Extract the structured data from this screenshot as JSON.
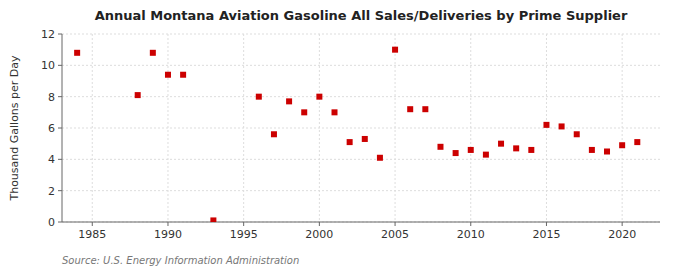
{
  "chart_data": {
    "type": "scatter",
    "title": "Annual Montana Aviation Gasoline All Sales/Deliveries by Prime Supplier",
    "ylabel": "Thousand Gallons per Day",
    "source": "Source: U.S. Energy Information Administration",
    "x": [
      1984,
      1988,
      1989,
      1990,
      1991,
      1993,
      1996,
      1997,
      1998,
      1999,
      2000,
      2001,
      2002,
      2003,
      2004,
      2005,
      2006,
      2007,
      2008,
      2009,
      2010,
      2011,
      2012,
      2013,
      2014,
      2015,
      2016,
      2017,
      2018,
      2019,
      2020,
      2021
    ],
    "values": [
      10.8,
      8.1,
      10.8,
      9.4,
      9.4,
      0.1,
      8.0,
      5.6,
      7.7,
      7.0,
      8.0,
      7.0,
      5.1,
      5.3,
      4.1,
      11.0,
      7.2,
      7.2,
      4.8,
      4.4,
      4.6,
      4.3,
      5.0,
      4.7,
      4.6,
      6.2,
      6.1,
      5.6,
      4.6,
      4.5,
      4.9,
      5.1
    ],
    "color": "#cc0000",
    "marker": "square",
    "xlim": [
      1983,
      2022.5
    ],
    "ylim": [
      0,
      12
    ],
    "xticks": [
      1985,
      1990,
      1995,
      2000,
      2005,
      2010,
      2015,
      2020
    ],
    "yticks": [
      0,
      2,
      4,
      6,
      8,
      10,
      12
    ],
    "grid": true
  }
}
